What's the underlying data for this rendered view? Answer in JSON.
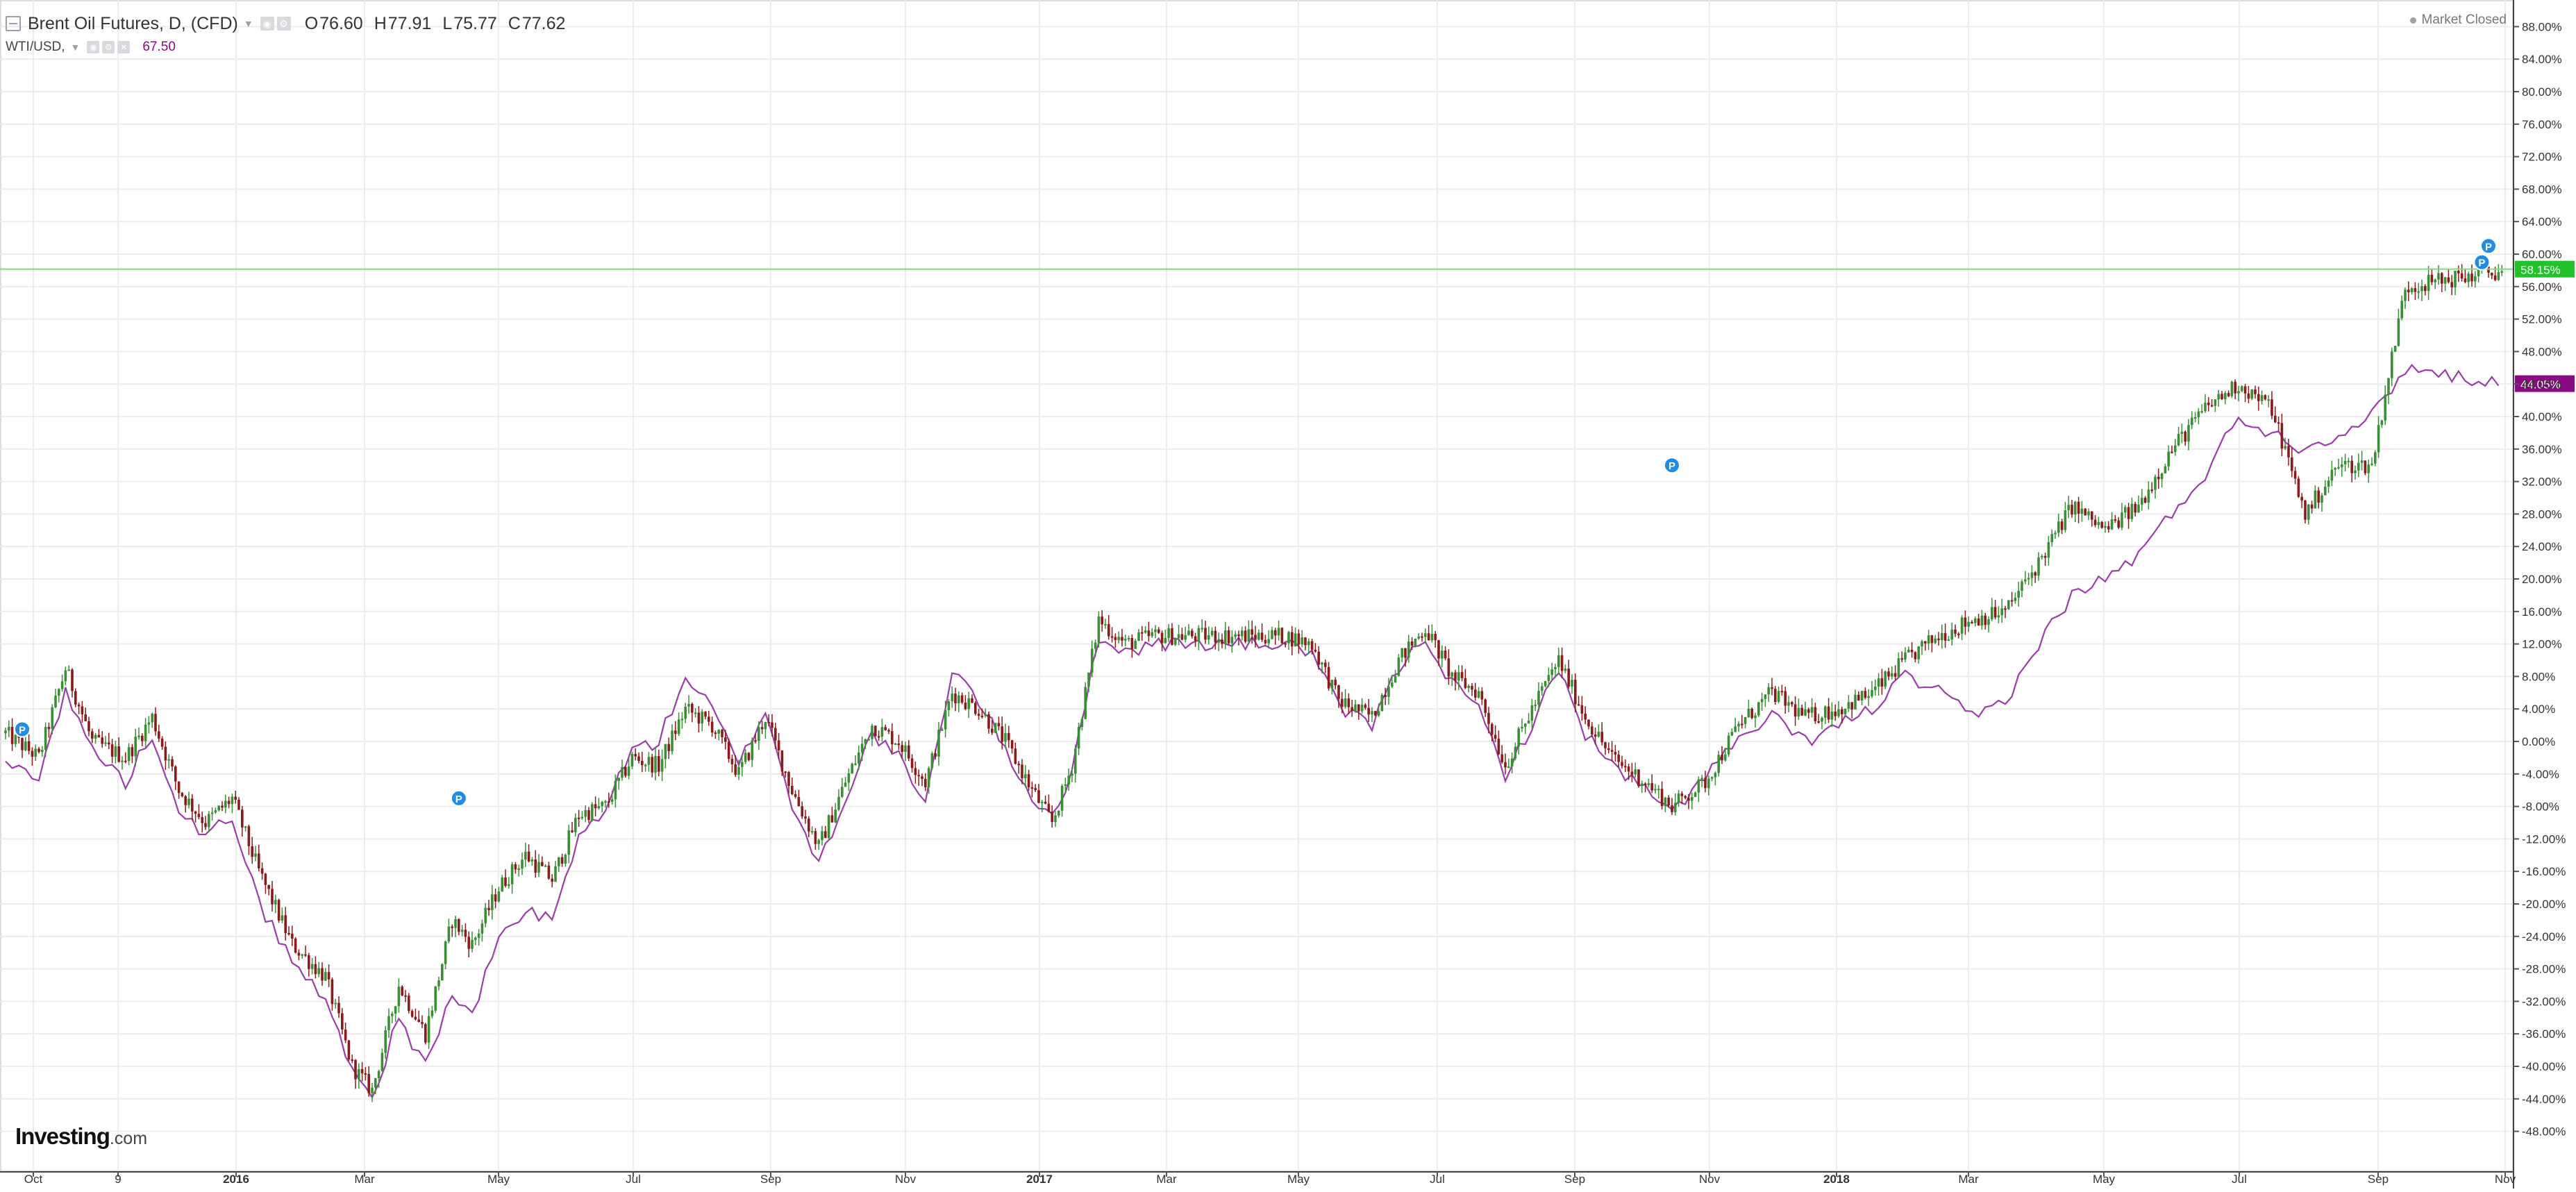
{
  "header": {
    "symbol_title": "Brent Oil Futures, D, (CFD)",
    "ohlc": [
      {
        "key": "O",
        "value": "76.60"
      },
      {
        "key": "H",
        "value": "77.91"
      },
      {
        "key": "L",
        "value": "75.77"
      },
      {
        "key": "C",
        "value": "77.62"
      }
    ],
    "compare_symbol": "WTI/USD,",
    "compare_value": "67.50",
    "market_status": "Market Closed"
  },
  "branding": {
    "logo_text": "Investing",
    "logo_suffix": ".com"
  },
  "colors": {
    "up_candle": "#3a8f36",
    "down_candle": "#8b1a1a",
    "compare_line": "#9b3ea8",
    "current_price_line": "#7be07b",
    "current_price_badge": "#22c22a",
    "compare_badge": "#8b0a84",
    "grid": "#ececec",
    "marker": "#1f8ce6"
  },
  "chart_data": {
    "type": "candlestick+line",
    "x_ticks": [
      "Oct",
      "9",
      "2016",
      "Mar",
      "May",
      "Jul",
      "Sep",
      "Nov",
      "2017",
      "Mar",
      "May",
      "Jul",
      "Sep",
      "Nov",
      "2018",
      "Mar",
      "May",
      "Jul",
      "Sep",
      "Nov"
    ],
    "y_ticks": [
      "88.00%",
      "84.00%",
      "80.00%",
      "76.00%",
      "72.00%",
      "68.00%",
      "64.00%",
      "60.00%",
      "56.00%",
      "52.00%",
      "48.00%",
      "44.00%",
      "40.00%",
      "36.00%",
      "32.00%",
      "28.00%",
      "24.00%",
      "20.00%",
      "16.00%",
      "12.00%",
      "8.00%",
      "4.00%",
      "0.00%",
      "-4.00%",
      "-8.00%",
      "-12.00%",
      "-16.00%",
      "-20.00%",
      "-24.00%",
      "-28.00%",
      "-32.00%",
      "-36.00%",
      "-40.00%",
      "-44.00%",
      "-48.00%"
    ],
    "y_range": [
      -50,
      90
    ],
    "y_unit": "% change",
    "x_range_months": [
      0,
      37.6
    ],
    "series": [
      {
        "name": "Brent Oil Futures",
        "style": "candlestick",
        "points": [
          [
            0.0,
            1
          ],
          [
            0.5,
            -2
          ],
          [
            0.9,
            9
          ],
          [
            1.3,
            0
          ],
          [
            1.8,
            -2
          ],
          [
            2.2,
            3
          ],
          [
            2.6,
            -6
          ],
          [
            3.0,
            -10
          ],
          [
            3.4,
            -7
          ],
          [
            3.8,
            -16
          ],
          [
            4.3,
            -25
          ],
          [
            4.8,
            -29
          ],
          [
            5.2,
            -40
          ],
          [
            5.5,
            -43
          ],
          [
            5.9,
            -30
          ],
          [
            6.3,
            -36
          ],
          [
            6.7,
            -22
          ],
          [
            7.0,
            -25
          ],
          [
            7.4,
            -18
          ],
          [
            7.8,
            -14
          ],
          [
            8.2,
            -17
          ],
          [
            8.6,
            -9
          ],
          [
            9.0,
            -8
          ],
          [
            9.4,
            -2
          ],
          [
            9.8,
            -3
          ],
          [
            10.2,
            4
          ],
          [
            10.6,
            2
          ],
          [
            11.0,
            -4
          ],
          [
            11.4,
            3
          ],
          [
            11.8,
            -6
          ],
          [
            12.2,
            -13
          ],
          [
            12.6,
            -5
          ],
          [
            13.0,
            2
          ],
          [
            13.4,
            0
          ],
          [
            13.8,
            -5
          ],
          [
            14.2,
            6
          ],
          [
            14.6,
            4
          ],
          [
            15.0,
            0
          ],
          [
            15.4,
            -6
          ],
          [
            15.7,
            -10
          ],
          [
            16.0,
            -3
          ],
          [
            16.4,
            15
          ],
          [
            16.8,
            12
          ],
          [
            17.2,
            13
          ],
          [
            17.6,
            13
          ],
          [
            18.0,
            13
          ],
          [
            18.4,
            13
          ],
          [
            18.8,
            13
          ],
          [
            19.2,
            13
          ],
          [
            19.6,
            12
          ],
          [
            20.0,
            5
          ],
          [
            20.5,
            3
          ],
          [
            20.9,
            10
          ],
          [
            21.3,
            14
          ],
          [
            21.7,
            8
          ],
          [
            22.1,
            6
          ],
          [
            22.5,
            -3
          ],
          [
            22.9,
            4
          ],
          [
            23.3,
            10
          ],
          [
            23.7,
            3
          ],
          [
            24.1,
            -2
          ],
          [
            24.6,
            -5
          ],
          [
            25.0,
            -8
          ],
          [
            25.5,
            -5
          ],
          [
            26.0,
            2
          ],
          [
            26.5,
            6
          ],
          [
            27.0,
            3
          ],
          [
            27.5,
            4
          ],
          [
            28.0,
            6
          ],
          [
            28.5,
            10
          ],
          [
            29.0,
            13
          ],
          [
            29.5,
            15
          ],
          [
            30.0,
            16
          ],
          [
            30.5,
            22
          ],
          [
            31.0,
            29
          ],
          [
            31.5,
            26
          ],
          [
            32.0,
            29
          ],
          [
            32.5,
            36
          ],
          [
            33.0,
            41
          ],
          [
            33.5,
            44
          ],
          [
            34.0,
            41
          ],
          [
            34.5,
            28
          ],
          [
            35.0,
            34
          ],
          [
            35.5,
            34
          ],
          [
            36.0,
            56
          ],
          [
            37.5,
            58
          ]
        ]
      },
      {
        "name": "WTI/USD",
        "style": "line",
        "points": [
          [
            0.0,
            -3
          ],
          [
            0.5,
            -4
          ],
          [
            0.9,
            6
          ],
          [
            1.3,
            -1
          ],
          [
            1.8,
            -5
          ],
          [
            2.2,
            1
          ],
          [
            2.6,
            -8
          ],
          [
            3.0,
            -12
          ],
          [
            3.4,
            -9
          ],
          [
            3.8,
            -20
          ],
          [
            4.3,
            -27
          ],
          [
            4.8,
            -32
          ],
          [
            5.2,
            -40
          ],
          [
            5.5,
            -44
          ],
          [
            5.9,
            -34
          ],
          [
            6.3,
            -40
          ],
          [
            6.7,
            -31
          ],
          [
            7.0,
            -34
          ],
          [
            7.4,
            -24
          ],
          [
            7.8,
            -21
          ],
          [
            8.2,
            -22
          ],
          [
            8.6,
            -12
          ],
          [
            9.0,
            -8
          ],
          [
            9.4,
            -1
          ],
          [
            9.8,
            0
          ],
          [
            10.2,
            8
          ],
          [
            10.6,
            4
          ],
          [
            11.0,
            -3
          ],
          [
            11.4,
            4
          ],
          [
            11.8,
            -8
          ],
          [
            12.2,
            -15
          ],
          [
            12.6,
            -7
          ],
          [
            13.0,
            1
          ],
          [
            13.4,
            -2
          ],
          [
            13.8,
            -8
          ],
          [
            14.2,
            9
          ],
          [
            14.6,
            5
          ],
          [
            15.0,
            -1
          ],
          [
            15.4,
            -7
          ],
          [
            15.7,
            -9
          ],
          [
            16.0,
            -4
          ],
          [
            16.4,
            13
          ],
          [
            16.8,
            11
          ],
          [
            17.2,
            12
          ],
          [
            17.6,
            12
          ],
          [
            18.0,
            12
          ],
          [
            18.4,
            12
          ],
          [
            18.8,
            12
          ],
          [
            19.2,
            12
          ],
          [
            19.6,
            11
          ],
          [
            20.0,
            4
          ],
          [
            20.5,
            2
          ],
          [
            20.9,
            9
          ],
          [
            21.3,
            13
          ],
          [
            21.7,
            7
          ],
          [
            22.1,
            4
          ],
          [
            22.5,
            -4
          ],
          [
            22.9,
            2
          ],
          [
            23.3,
            9
          ],
          [
            23.7,
            1
          ],
          [
            24.1,
            -3
          ],
          [
            24.6,
            -6
          ],
          [
            25.0,
            -9
          ],
          [
            25.5,
            -4
          ],
          [
            26.0,
            0
          ],
          [
            26.5,
            3
          ],
          [
            27.0,
            0
          ],
          [
            27.5,
            2
          ],
          [
            28.0,
            4
          ],
          [
            28.5,
            8
          ],
          [
            29.0,
            6
          ],
          [
            29.5,
            3
          ],
          [
            30.0,
            5
          ],
          [
            30.5,
            12
          ],
          [
            31.0,
            18
          ],
          [
            31.5,
            20
          ],
          [
            32.0,
            23
          ],
          [
            32.5,
            28
          ],
          [
            33.0,
            33
          ],
          [
            33.5,
            40
          ],
          [
            34.0,
            38
          ],
          [
            34.5,
            36
          ],
          [
            35.0,
            38
          ],
          [
            35.5,
            40
          ],
          [
            36.0,
            46
          ],
          [
            37.5,
            44
          ]
        ]
      }
    ],
    "current_value_labels": [
      {
        "series": "Brent Oil Futures",
        "label": "58.15%",
        "value": 58.15
      },
      {
        "series": "WTI/USD",
        "label": "44.05%",
        "value": 44.05
      }
    ],
    "event_markers": [
      {
        "label": "P",
        "x_month": 0.25,
        "value": 1.5
      },
      {
        "label": "P",
        "x_month": 6.8,
        "value": -7
      },
      {
        "label": "P",
        "x_month": 25.0,
        "value": 34
      },
      {
        "label": "P",
        "x_month": 37.25,
        "value": 61
      },
      {
        "label": "P",
        "x_month": 37.15,
        "value": 59
      }
    ],
    "grid": true
  }
}
